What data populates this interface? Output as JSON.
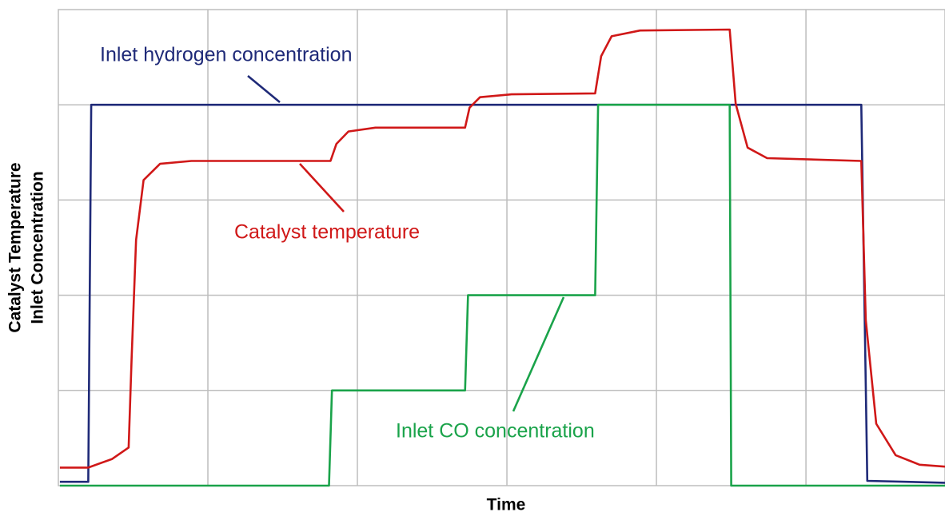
{
  "chart_data": {
    "type": "line",
    "xlabel": "Time",
    "ylabel": [
      "Catalyst Temperature",
      "Inlet Concentration"
    ],
    "xlim": [
      0,
      5.93
    ],
    "ylim": [
      0,
      5
    ],
    "xticks": [
      1,
      2,
      3,
      4,
      5
    ],
    "yticks": [
      1,
      2,
      3,
      4
    ],
    "grid": true,
    "series": [
      {
        "name": "Inlet hydrogen concentration",
        "color": "#1f2a78",
        "x": [
          0.01,
          0.2,
          0.22,
          5.37,
          5.41,
          5.93
        ],
        "values": [
          0.04,
          0.04,
          4.0,
          4.0,
          0.05,
          0.03
        ]
      },
      {
        "name": "Catalyst temperature",
        "color": "#d01818",
        "x": [
          0.01,
          0.2,
          0.36,
          0.47,
          0.49,
          0.52,
          0.57,
          0.68,
          0.89,
          1.82,
          1.86,
          1.94,
          2.12,
          2.72,
          2.75,
          2.82,
          3.03,
          3.59,
          3.63,
          3.7,
          3.89,
          4.49,
          4.53,
          4.61,
          4.74,
          5.37,
          5.4,
          5.47,
          5.6,
          5.76,
          5.93
        ],
        "values": [
          0.19,
          0.19,
          0.28,
          0.4,
          1.33,
          2.58,
          3.21,
          3.38,
          3.41,
          3.41,
          3.59,
          3.72,
          3.76,
          3.76,
          3.97,
          4.08,
          4.11,
          4.12,
          4.51,
          4.72,
          4.78,
          4.79,
          4.01,
          3.55,
          3.44,
          3.41,
          1.74,
          0.65,
          0.32,
          0.22,
          0.2
        ]
      },
      {
        "name": "Inlet CO concentration",
        "color": "#1aa34a",
        "x": [
          0.01,
          1.81,
          1.83,
          2.72,
          2.74,
          3.59,
          3.61,
          4.49,
          4.5,
          5.93
        ],
        "values": [
          0,
          0,
          1.0,
          1.0,
          2.0,
          2.0,
          4.0,
          4.0,
          0,
          0
        ]
      }
    ]
  }
}
